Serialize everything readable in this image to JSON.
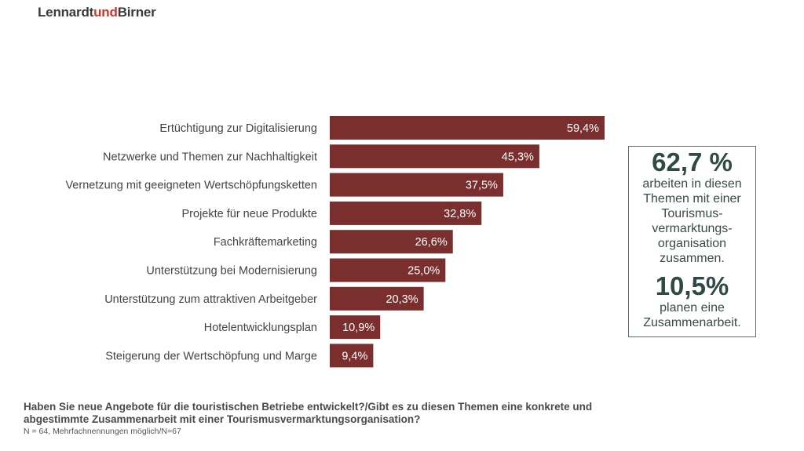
{
  "brand": {
    "part1": "Lennardt",
    "part2": "und",
    "part3": "Birner"
  },
  "colors": {
    "bar": "#7a2e2e",
    "label_text": "#444444",
    "accent": "#c0392b",
    "callout_border": "#5f6f66"
  },
  "chart_data": {
    "type": "bar",
    "orientation": "horizontal",
    "categories": [
      "Ertüchtigung zur Digitalisierung",
      "Netzwerke und Themen zur Nachhaltigkeit",
      "Vernetzung mit geeigneten Wertschöpfungsketten",
      "Projekte für neue Produkte",
      "Fachkräftemarketing",
      "Unterstützung bei Modernisierung",
      "Unterstützung zum attraktiven Arbeitgeber",
      "Hotelentwicklungsplan",
      "Steigerung der Wertschöpfung und Marge"
    ],
    "values": [
      59.4,
      45.3,
      37.5,
      32.8,
      26.6,
      25.0,
      20.3,
      10.9,
      9.4
    ],
    "value_labels": [
      "59,4%",
      "45,3%",
      "37,5%",
      "32,8%",
      "26,6%",
      "25,0%",
      "20,3%",
      "10,9%",
      "9,4%"
    ],
    "xlim": [
      0,
      100
    ],
    "grid": false,
    "title": "",
    "xlabel": "",
    "ylabel": ""
  },
  "callout": {
    "stat1": "62,7 %",
    "text1": [
      "arbeiten in diesen",
      "Themen mit einer",
      "Tourismus-",
      "vermarktungs-",
      "organisation",
      "zusammen."
    ],
    "stat2": "10,5%",
    "text2": [
      "planen eine",
      "Zusammenarbeit."
    ]
  },
  "question": {
    "line1": "Haben Sie neue Angebote für die touristischen Betriebe entwickelt?/Gibt es zu diesen Themen eine konkrete und",
    "line2": "abgestimmte Zusammenarbeit mit einer Tourismusvermarktungsorganisation?"
  },
  "note": "N = 64, Mehrfachnennungen möglich/N=67"
}
